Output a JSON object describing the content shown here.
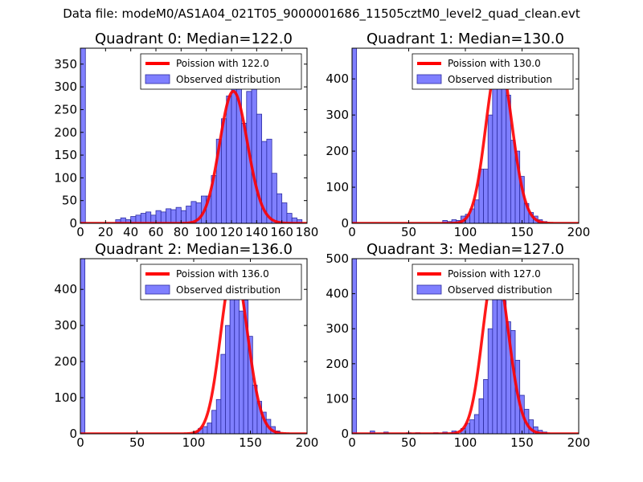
{
  "suptitle": "Data file: modeM0/AS1A04_021T05_9000001686_11505cztM0_level2_quad_clean.evt",
  "colors": {
    "bars": "#7f7fff",
    "bar_edge": "#2c2ca0",
    "fit": "#ff0000",
    "axis": "#000000"
  },
  "legend": {
    "observed_label": "Observed distribution"
  },
  "chart_data": [
    {
      "type": "bar",
      "title": "Quadrant 0: Median=122.0",
      "fit_label": "Poission with 122.0",
      "median": 122.0,
      "xlim": [
        0,
        180
      ],
      "ylim": [
        0,
        385
      ],
      "xticks": [
        0,
        20,
        40,
        60,
        80,
        100,
        120,
        140,
        160,
        180
      ],
      "yticks": [
        0,
        50,
        100,
        150,
        200,
        250,
        300,
        350
      ],
      "bin_width": 4,
      "bins": [
        [
          0,
          385
        ],
        [
          28,
          8
        ],
        [
          32,
          12
        ],
        [
          36,
          8
        ],
        [
          40,
          15
        ],
        [
          44,
          18
        ],
        [
          48,
          22
        ],
        [
          52,
          25
        ],
        [
          56,
          18
        ],
        [
          60,
          28
        ],
        [
          64,
          25
        ],
        [
          68,
          32
        ],
        [
          72,
          30
        ],
        [
          76,
          35
        ],
        [
          80,
          28
        ],
        [
          84,
          38
        ],
        [
          88,
          48
        ],
        [
          92,
          45
        ],
        [
          96,
          60
        ],
        [
          100,
          60
        ],
        [
          104,
          105
        ],
        [
          108,
          185
        ],
        [
          112,
          230
        ],
        [
          116,
          280
        ],
        [
          120,
          305
        ],
        [
          124,
          300
        ],
        [
          128,
          220
        ],
        [
          132,
          290
        ],
        [
          136,
          310
        ],
        [
          140,
          240
        ],
        [
          144,
          180
        ],
        [
          148,
          185
        ],
        [
          152,
          110
        ],
        [
          156,
          65
        ],
        [
          160,
          45
        ],
        [
          164,
          22
        ],
        [
          168,
          12
        ],
        [
          172,
          8
        ]
      ],
      "fit_peak": 290
    },
    {
      "type": "bar",
      "title": "Quadrant 1: Median=130.0",
      "fit_label": "Poission with 130.0",
      "median": 130.0,
      "xlim": [
        0,
        200
      ],
      "ylim": [
        0,
        485
      ],
      "xticks": [
        0,
        50,
        100,
        150,
        200
      ],
      "yticks": [
        0,
        100,
        200,
        300,
        400
      ],
      "bin_width": 4,
      "bins": [
        [
          0,
          485
        ],
        [
          80,
          8
        ],
        [
          84,
          5
        ],
        [
          88,
          10
        ],
        [
          92,
          8
        ],
        [
          96,
          20
        ],
        [
          100,
          25
        ],
        [
          104,
          40
        ],
        [
          108,
          65
        ],
        [
          112,
          150
        ],
        [
          116,
          150
        ],
        [
          120,
          300
        ],
        [
          124,
          400
        ],
        [
          128,
          390
        ],
        [
          132,
          380
        ],
        [
          136,
          355
        ],
        [
          140,
          230
        ],
        [
          144,
          200
        ],
        [
          148,
          130
        ],
        [
          152,
          55
        ],
        [
          156,
          30
        ],
        [
          160,
          20
        ],
        [
          164,
          10
        ],
        [
          168,
          5
        ]
      ],
      "fit_peak": 455
    },
    {
      "type": "bar",
      "title": "Quadrant 2: Median=136.0",
      "fit_label": "Poission with 136.0",
      "median": 136.0,
      "xlim": [
        0,
        200
      ],
      "ylim": [
        0,
        485
      ],
      "xticks": [
        0,
        50,
        100,
        150,
        200
      ],
      "yticks": [
        0,
        100,
        200,
        300,
        400
      ],
      "bin_width": 4,
      "bins": [
        [
          0,
          485
        ],
        [
          100,
          5
        ],
        [
          104,
          15
        ],
        [
          108,
          20
        ],
        [
          112,
          30
        ],
        [
          116,
          65
        ],
        [
          120,
          95
        ],
        [
          124,
          220
        ],
        [
          128,
          300
        ],
        [
          132,
          380
        ],
        [
          136,
          415
        ],
        [
          140,
          340
        ],
        [
          144,
          370
        ],
        [
          148,
          270
        ],
        [
          152,
          135
        ],
        [
          156,
          90
        ],
        [
          160,
          60
        ],
        [
          164,
          40
        ],
        [
          168,
          20
        ],
        [
          172,
          8
        ]
      ],
      "fit_peak": 465
    },
    {
      "type": "bar",
      "title": "Quadrant 3: Median=127.0",
      "fit_label": "Poission with 127.0",
      "median": 127.0,
      "xlim": [
        0,
        200
      ],
      "ylim": [
        0,
        500
      ],
      "xticks": [
        0,
        50,
        100,
        150,
        200
      ],
      "yticks": [
        0,
        100,
        200,
        300,
        400,
        500
      ],
      "bin_width": 4,
      "bins": [
        [
          0,
          500
        ],
        [
          16,
          8
        ],
        [
          28,
          5
        ],
        [
          48,
          3
        ],
        [
          56,
          3
        ],
        [
          72,
          3
        ],
        [
          80,
          5
        ],
        [
          88,
          8
        ],
        [
          96,
          15
        ],
        [
          100,
          30
        ],
        [
          104,
          40
        ],
        [
          108,
          55
        ],
        [
          112,
          100
        ],
        [
          116,
          155
        ],
        [
          120,
          300
        ],
        [
          124,
          400
        ],
        [
          128,
          480
        ],
        [
          132,
          380
        ],
        [
          136,
          320
        ],
        [
          140,
          295
        ],
        [
          144,
          210
        ],
        [
          148,
          110
        ],
        [
          152,
          70
        ],
        [
          156,
          40
        ],
        [
          160,
          20
        ],
        [
          164,
          10
        ],
        [
          168,
          5
        ]
      ],
      "fit_peak": 480
    }
  ]
}
